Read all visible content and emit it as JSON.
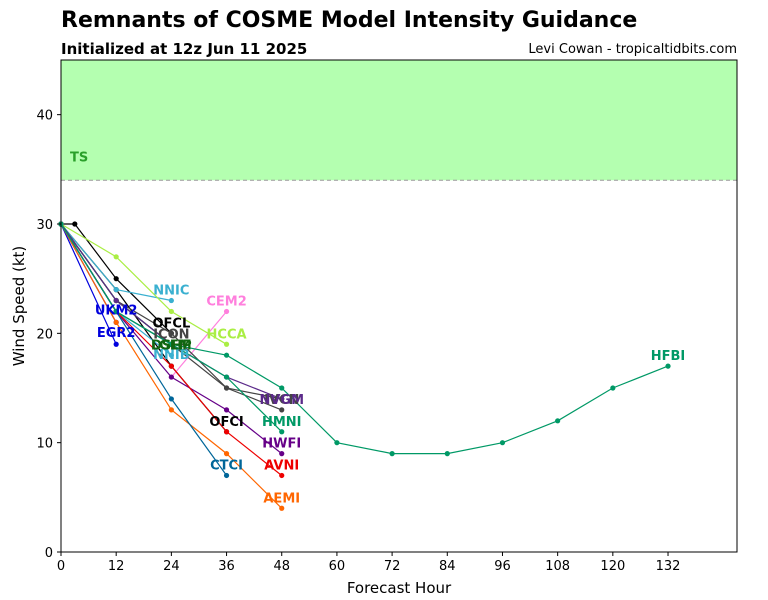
{
  "header": {
    "title": "Remnants of COSME Model Intensity Guidance",
    "subtitle": "Initialized at 12z Jun 11 2025",
    "credit": "Levi Cowan - tropicaltidbits.com"
  },
  "chart_data": {
    "type": "line",
    "xlabel": "Forecast Hour",
    "ylabel": "Wind Speed (kt)",
    "xlim": [
      0,
      147
    ],
    "ylim": [
      0,
      45
    ],
    "xticks": [
      0,
      12,
      24,
      36,
      48,
      60,
      72,
      84,
      96,
      108,
      120,
      132
    ],
    "yticks": [
      0,
      10,
      20,
      30,
      40
    ],
    "grid": false,
    "threshold": {
      "label": "TS",
      "value": 34,
      "fill_color": "#b4ffb0",
      "text_color": "#2aa02a",
      "line_color": "#999999"
    },
    "series": [
      {
        "name": "OFCL",
        "color": "#000000",
        "points": [
          [
            0,
            30
          ],
          [
            3,
            30
          ],
          [
            12,
            25
          ],
          [
            24,
            20
          ]
        ],
        "label_pos": [
          24,
          21
        ]
      },
      {
        "name": "OFCI",
        "color": "#000000",
        "points": [
          [
            0,
            30
          ],
          [
            12,
            24
          ],
          [
            24,
            17
          ],
          [
            36,
            11
          ]
        ],
        "label_pos": [
          36,
          12
        ]
      },
      {
        "name": "UKM2",
        "color": "#0000dd",
        "points": [
          [
            0,
            30
          ],
          [
            12,
            21
          ]
        ],
        "label_pos": [
          12,
          22.2
        ]
      },
      {
        "name": "EGR2",
        "color": "#0000dd",
        "points": [
          [
            0,
            30
          ],
          [
            12,
            19
          ]
        ],
        "label_pos": [
          12,
          20.1
        ]
      },
      {
        "name": "NNIC",
        "color": "#3ab0d0",
        "points": [
          [
            0,
            30
          ],
          [
            12,
            24
          ],
          [
            24,
            23
          ]
        ],
        "label_pos": [
          24,
          24
        ]
      },
      {
        "name": "NNIB",
        "color": "#3ab0d0",
        "points": [
          [
            0,
            30
          ],
          [
            12,
            22
          ],
          [
            24,
            18
          ]
        ],
        "label_pos": [
          24,
          18.1
        ]
      },
      {
        "name": "CEM2",
        "color": "#ff7fdd",
        "points": [
          [
            24,
            16
          ],
          [
            36,
            22
          ]
        ],
        "label_pos": [
          36,
          23
        ]
      },
      {
        "name": "HCCA",
        "color": "#aaee44",
        "points": [
          [
            0,
            30
          ],
          [
            12,
            27
          ],
          [
            24,
            22
          ],
          [
            36,
            19
          ]
        ],
        "label_pos": [
          36,
          20
        ]
      },
      {
        "name": "ICON",
        "color": "#444444",
        "points": [
          [
            0,
            30
          ],
          [
            12,
            23
          ],
          [
            24,
            20
          ],
          [
            36,
            15
          ],
          [
            48,
            13
          ]
        ],
        "label_pos": [
          24,
          20
        ]
      },
      {
        "name": "IVCN",
        "color": "#444444",
        "points": [
          [
            0,
            30
          ],
          [
            12,
            22
          ],
          [
            24,
            19
          ],
          [
            36,
            15
          ],
          [
            48,
            14
          ]
        ],
        "label_pos": [
          48,
          14
        ]
      },
      {
        "name": "LGEM",
        "color": "#116611",
        "points": [
          [
            0,
            30
          ],
          [
            12,
            23
          ],
          [
            24,
            19
          ]
        ],
        "label_pos": [
          24,
          19
        ]
      },
      {
        "name": "DSHP",
        "color": "#116611",
        "points": [
          [
            0,
            30
          ],
          [
            12,
            23
          ],
          [
            24,
            19
          ]
        ],
        "label_pos": [
          24,
          19
        ]
      },
      {
        "name": "NVGM",
        "color": "#5b2a8a",
        "points": [
          [
            0,
            30
          ],
          [
            12,
            23
          ],
          [
            24,
            19
          ],
          [
            36,
            16
          ],
          [
            48,
            14
          ]
        ],
        "label_pos": [
          48,
          14
        ]
      },
      {
        "name": "HMNI",
        "color": "#009966",
        "points": [
          [
            0,
            30
          ],
          [
            12,
            22
          ],
          [
            24,
            19
          ],
          [
            36,
            16
          ],
          [
            48,
            11
          ]
        ],
        "label_pos": [
          48,
          12
        ]
      },
      {
        "name": "HWFI",
        "color": "#660088",
        "points": [
          [
            0,
            30
          ],
          [
            12,
            22
          ],
          [
            24,
            16
          ],
          [
            36,
            13
          ],
          [
            48,
            9
          ]
        ],
        "label_pos": [
          48,
          10
        ]
      },
      {
        "name": "AVNI",
        "color": "#ee0000",
        "points": [
          [
            0,
            30
          ],
          [
            12,
            22
          ],
          [
            24,
            17
          ],
          [
            36,
            11
          ],
          [
            48,
            7
          ]
        ],
        "label_pos": [
          48,
          8
        ]
      },
      {
        "name": "AEMI",
        "color": "#ff6600",
        "points": [
          [
            0,
            30
          ],
          [
            12,
            21
          ],
          [
            24,
            13
          ],
          [
            36,
            9
          ],
          [
            48,
            4
          ]
        ],
        "label_pos": [
          48,
          5
        ]
      },
      {
        "name": "CTCI",
        "color": "#006699",
        "points": [
          [
            0,
            30
          ],
          [
            12,
            22
          ],
          [
            24,
            14
          ],
          [
            36,
            7
          ]
        ],
        "label_pos": [
          36,
          8
        ]
      },
      {
        "name": "HFBI",
        "color": "#009966",
        "points": [
          [
            0,
            30
          ],
          [
            12,
            22
          ],
          [
            24,
            19
          ],
          [
            36,
            18
          ],
          [
            48,
            15
          ],
          [
            60,
            10
          ],
          [
            72,
            9
          ],
          [
            84,
            9
          ],
          [
            96,
            10
          ],
          [
            108,
            12
          ],
          [
            120,
            15
          ],
          [
            132,
            17
          ]
        ],
        "label_pos": [
          132,
          18
        ]
      }
    ]
  }
}
